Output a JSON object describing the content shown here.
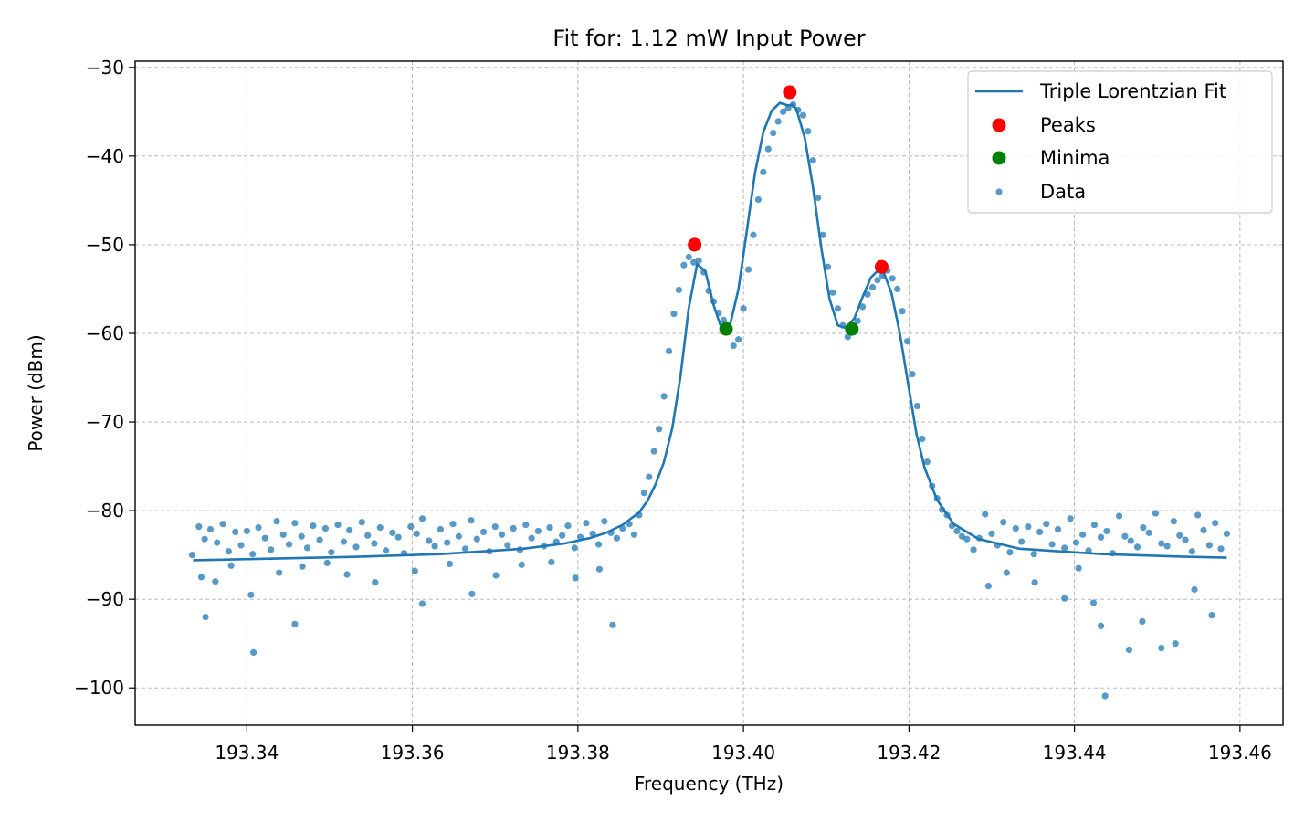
{
  "chart_data": {
    "type": "line",
    "title": "Fit for: 1.12 mW Input Power",
    "xlabel": "Frequency (THz)",
    "ylabel": "Power (dBm)",
    "xlim": [
      193.3265,
      193.4652
    ],
    "ylim": [
      -104.2,
      -29.3
    ],
    "xticks": [
      193.34,
      193.36,
      193.38,
      193.4,
      193.42,
      193.44,
      193.46
    ],
    "xtick_labels": [
      "193.34",
      "193.36",
      "193.38",
      "193.40",
      "193.42",
      "193.44",
      "193.46"
    ],
    "yticks": [
      -100,
      -90,
      -80,
      -70,
      -60,
      -50,
      -40,
      -30
    ],
    "ytick_labels": [
      "−100",
      "−90",
      "−80",
      "−70",
      "−60",
      "−50",
      "−40",
      "−30"
    ],
    "grid": true,
    "legend_position": "top-right",
    "colors": {
      "fit": "#1f77b4",
      "data": "#1f77b4",
      "peaks": "#ff0000",
      "minima": "#008000"
    },
    "series": [
      {
        "name": "Triple Lorentzian Fit",
        "kind": "line",
        "x": [
          193.3335,
          193.3434,
          193.3534,
          193.3634,
          193.3734,
          193.3784,
          193.3814,
          193.3834,
          193.3854,
          193.3874,
          193.3884,
          193.3894,
          193.3904,
          193.3914,
          193.3924,
          193.3934,
          193.3944,
          193.3954,
          193.3964,
          193.3974,
          193.3984,
          193.3994,
          193.4004,
          193.4014,
          193.4024,
          193.4034,
          193.4044,
          193.4054,
          193.4059,
          193.4064,
          193.4074,
          193.4084,
          193.4094,
          193.4104,
          193.4114,
          193.4124,
          193.4134,
          193.4144,
          193.4154,
          193.4164,
          193.4169,
          193.4179,
          193.4189,
          193.4199,
          193.4209,
          193.4219,
          193.4234,
          193.4254,
          193.4284,
          193.4334,
          193.4434,
          193.4534,
          193.4584
        ],
        "y": [
          -85.6,
          -85.4,
          -85.2,
          -84.9,
          -84.3,
          -83.7,
          -83.1,
          -82.5,
          -81.6,
          -80.2,
          -78.9,
          -77.0,
          -74.5,
          -70.7,
          -64.8,
          -57.1,
          -52.2,
          -53.0,
          -56.8,
          -59.6,
          -59.0,
          -55.0,
          -48.5,
          -41.9,
          -37.3,
          -34.9,
          -34.0,
          -34.3,
          -34.2,
          -34.7,
          -37.9,
          -43.5,
          -50.3,
          -56.1,
          -59.1,
          -59.4,
          -58.3,
          -55.9,
          -53.7,
          -52.8,
          -53.0,
          -55.5,
          -60.0,
          -65.7,
          -71.3,
          -75.2,
          -78.8,
          -81.5,
          -83.2,
          -84.3,
          -84.9,
          -85.2,
          -85.3
        ]
      },
      {
        "name": "Peaks",
        "kind": "marker",
        "x": [
          193.3941,
          193.4056,
          193.4167
        ],
        "y": [
          -50.0,
          -32.8,
          -52.5
        ]
      },
      {
        "name": "Minima",
        "kind": "marker",
        "x": [
          193.3979,
          193.4131
        ],
        "y": [
          -59.5,
          -59.5
        ]
      },
      {
        "name": "Data",
        "kind": "scatter",
        "x": [
          193.3334,
          193.3342,
          193.3349,
          193.3356,
          193.3364,
          193.3371,
          193.3378,
          193.3386,
          193.3393,
          193.34,
          193.3407,
          193.3414,
          193.3422,
          193.3429,
          193.3436,
          193.3444,
          193.3451,
          193.3458,
          193.3466,
          193.3473,
          193.348,
          193.3488,
          193.3495,
          193.3502,
          193.351,
          193.3517,
          193.3524,
          193.3532,
          193.3539,
          193.3546,
          193.3554,
          193.3561,
          193.3568,
          193.3576,
          193.3583,
          193.359,
          193.3598,
          193.3605,
          193.3612,
          193.362,
          193.3627,
          193.3634,
          193.3642,
          193.3649,
          193.3656,
          193.3664,
          193.3671,
          193.3678,
          193.3686,
          193.3693,
          193.37,
          193.3708,
          193.3715,
          193.3722,
          193.373,
          193.3737,
          193.3744,
          193.3752,
          193.3759,
          193.3766,
          193.3774,
          193.3781,
          193.3788,
          193.3796,
          193.3803,
          193.381,
          193.3818,
          193.3825,
          193.3832,
          193.384,
          193.3847,
          193.3854,
          193.3862,
          193.3345,
          193.3362,
          193.3381,
          193.3405,
          193.3439,
          193.3467,
          193.3497,
          193.3521,
          193.3555,
          193.3603,
          193.3645,
          193.3701,
          193.3732,
          193.3768,
          193.3797,
          193.3826,
          193.335,
          193.3408,
          193.3458,
          193.3612,
          193.3672,
          193.3842,
          193.3868,
          193.3874,
          193.388,
          193.3886,
          193.3892,
          193.3898,
          193.3904,
          193.391,
          193.3916,
          193.3922,
          193.3928,
          193.3934,
          193.394,
          193.3946,
          193.3952,
          193.3958,
          193.3964,
          193.397,
          193.3976,
          193.3982,
          193.3988,
          193.3994,
          193.4,
          193.4006,
          193.4012,
          193.4018,
          193.4024,
          193.403,
          193.4036,
          193.4042,
          193.4048,
          193.4054,
          193.406,
          193.4066,
          193.4072,
          193.4078,
          193.4084,
          193.409,
          193.4096,
          193.4102,
          193.4108,
          193.4114,
          193.412,
          193.4126,
          193.4132,
          193.4138,
          193.4144,
          193.415,
          193.4156,
          193.4162,
          193.4168,
          193.4174,
          193.418,
          193.4186,
          193.4192,
          193.4198,
          193.4204,
          193.421,
          193.4216,
          193.4222,
          193.4228,
          193.4234,
          193.424,
          193.4246,
          193.4252,
          193.4258,
          193.4264,
          193.427,
          193.4278,
          193.4285,
          193.4292,
          193.43,
          193.4307,
          193.4314,
          193.4322,
          193.4329,
          193.4336,
          193.4344,
          193.4351,
          193.4358,
          193.4366,
          193.4373,
          193.438,
          193.4388,
          193.4395,
          193.4402,
          193.441,
          193.4417,
          193.4424,
          193.4432,
          193.4439,
          193.4446,
          193.4454,
          193.4461,
          193.4468,
          193.4476,
          193.4483,
          193.449,
          193.4498,
          193.4505,
          193.4512,
          193.452,
          193.4527,
          193.4534,
          193.4542,
          193.4549,
          193.4556,
          193.4563,
          193.457,
          193.4577,
          193.4584,
          193.4296,
          193.4318,
          193.4352,
          193.4388,
          193.4405,
          193.4423,
          193.4432,
          193.4437,
          193.4466,
          193.4482,
          193.4505,
          193.4522,
          193.4545,
          193.4566
        ],
        "y": [
          -85.0,
          -81.8,
          -83.2,
          -82.1,
          -83.6,
          -81.5,
          -84.6,
          -82.4,
          -83.9,
          -82.3,
          -84.9,
          -81.9,
          -83.1,
          -84.4,
          -81.2,
          -82.7,
          -83.8,
          -81.4,
          -82.9,
          -84.2,
          -81.7,
          -83.3,
          -82.0,
          -84.7,
          -81.6,
          -83.5,
          -82.2,
          -84.1,
          -81.3,
          -82.8,
          -83.7,
          -81.9,
          -84.5,
          -82.5,
          -83.0,
          -84.8,
          -81.8,
          -82.6,
          -80.9,
          -83.4,
          -84.0,
          -82.1,
          -83.6,
          -81.5,
          -82.9,
          -84.3,
          -81.1,
          -83.2,
          -82.4,
          -84.6,
          -81.8,
          -82.7,
          -83.9,
          -82.0,
          -84.4,
          -81.6,
          -83.1,
          -82.3,
          -84.0,
          -81.9,
          -83.5,
          -82.8,
          -81.7,
          -84.2,
          -83.0,
          -81.4,
          -82.6,
          -83.8,
          -81.2,
          -82.5,
          -83.1,
          -82.0,
          -81.5,
          -87.5,
          -88.0,
          -86.2,
          -89.5,
          -87.0,
          -86.3,
          -85.9,
          -87.2,
          -88.1,
          -86.8,
          -86.0,
          -87.3,
          -86.1,
          -85.8,
          -87.6,
          -86.6,
          -92.0,
          -96.0,
          -92.8,
          -90.5,
          -89.4,
          -92.9,
          -82.7,
          -80.5,
          -78.0,
          -76.2,
          -73.3,
          -70.8,
          -67.1,
          -62.0,
          -57.8,
          -55.1,
          -52.3,
          -51.4,
          -52.0,
          -51.8,
          -53.1,
          -55.2,
          -56.4,
          -57.7,
          -58.5,
          -59.7,
          -61.4,
          -60.7,
          -57.2,
          -52.8,
          -48.9,
          -44.9,
          -41.8,
          -39.2,
          -37.4,
          -36.1,
          -35.0,
          -34.6,
          -34.2,
          -34.8,
          -35.4,
          -37.2,
          -40.5,
          -44.7,
          -48.9,
          -52.5,
          -55.4,
          -57.2,
          -59.1,
          -60.4,
          -59.8,
          -58.6,
          -57.0,
          -55.6,
          -54.8,
          -54.0,
          -53.5,
          -52.9,
          -53.8,
          -55.0,
          -57.5,
          -60.9,
          -64.6,
          -68.2,
          -71.9,
          -74.5,
          -77.2,
          -78.6,
          -79.9,
          -80.5,
          -81.7,
          -82.3,
          -82.9,
          -83.2,
          -84.4,
          -83.1,
          -80.4,
          -82.6,
          -83.9,
          -81.3,
          -84.7,
          -82.0,
          -83.5,
          -81.8,
          -84.9,
          -82.4,
          -81.5,
          -83.8,
          -82.1,
          -84.2,
          -80.9,
          -83.6,
          -82.7,
          -84.5,
          -81.6,
          -83.0,
          -82.3,
          -84.8,
          -80.6,
          -82.9,
          -83.4,
          -84.1,
          -81.9,
          -82.5,
          -80.3,
          -83.7,
          -84.0,
          -81.2,
          -82.8,
          -83.3,
          -84.6,
          -80.5,
          -82.2,
          -83.9,
          -81.4,
          -84.3,
          -82.6,
          -88.5,
          -87.0,
          -88.1,
          -89.9,
          -86.5,
          -90.4,
          -93.0,
          -100.9,
          -95.7,
          -92.5,
          -95.5,
          -95.0,
          -88.9,
          -91.8
        ]
      }
    ]
  },
  "legend": {
    "items": [
      {
        "label": "Triple Lorentzian Fit",
        "icon": "line"
      },
      {
        "label": "Peaks",
        "icon": "red-dot"
      },
      {
        "label": "Minima",
        "icon": "green-dot"
      },
      {
        "label": "Data",
        "icon": "blue-dot"
      }
    ]
  }
}
